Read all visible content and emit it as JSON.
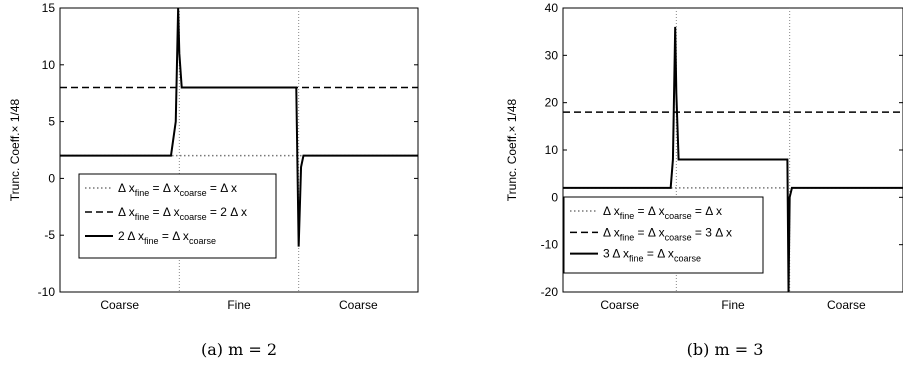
{
  "chart_data": [
    {
      "type": "line",
      "caption": "(a) m = 2",
      "ylabel": "Trunc. Coeff.× 1/48",
      "xlabel": "",
      "categories": [
        "Coarse",
        "Fine",
        "Coarse"
      ],
      "xlim": [
        0,
        3
      ],
      "ylim": [
        -10,
        15
      ],
      "yticks": [
        -10,
        -5,
        0,
        5,
        10,
        15
      ],
      "grid": false,
      "interfaces": [
        1,
        2
      ],
      "legend_position": "bottom-left",
      "series": [
        {
          "legend": [
            "Δ x",
            "fine",
            " = Δ x",
            "coarse",
            " = Δ x"
          ],
          "style": "dotted",
          "x": [
            0,
            1,
            2,
            3
          ],
          "y": [
            2,
            2,
            2,
            2
          ]
        },
        {
          "legend": [
            "Δ x",
            "fine",
            " = Δ x",
            "coarse",
            " = 2 Δ x"
          ],
          "style": "dashed",
          "x": [
            0,
            3
          ],
          "y": [
            8,
            8
          ]
        },
        {
          "legend": [
            "2 Δ x",
            "fine",
            " = Δ x",
            "coarse",
            ""
          ],
          "style": "solid",
          "x": [
            0,
            0.93,
            0.97,
            0.99,
            1.0,
            1.02,
            1.04,
            1.96,
            1.98,
            2.0,
            2.02,
            2.04,
            3
          ],
          "y": [
            2,
            2,
            5,
            15,
            11,
            8,
            8,
            8,
            8,
            -6,
            1,
            2,
            2
          ]
        }
      ]
    },
    {
      "type": "line",
      "caption": "(b) m = 3",
      "ylabel": "Trunc. Coeff.× 1/48",
      "xlabel": "",
      "categories": [
        "Coarse",
        "Fine",
        "Coarse"
      ],
      "xlim": [
        0,
        3
      ],
      "ylim": [
        -20,
        40
      ],
      "yticks": [
        -20,
        -10,
        0,
        10,
        20,
        30,
        40
      ],
      "grid": false,
      "interfaces": [
        1,
        2
      ],
      "legend_position": "bottom-left",
      "series": [
        {
          "legend": [
            "Δ x",
            "fine",
            " = Δ x",
            "coarse",
            " = Δ x"
          ],
          "style": "dotted",
          "x": [
            0,
            1,
            2,
            3
          ],
          "y": [
            2,
            2,
            2,
            2
          ]
        },
        {
          "legend": [
            "Δ x",
            "fine",
            " = Δ x",
            "coarse",
            " = 3 Δ x"
          ],
          "style": "dashed",
          "x": [
            0,
            3
          ],
          "y": [
            18,
            18
          ]
        },
        {
          "legend": [
            "3 Δ x",
            "fine",
            " = Δ x",
            "coarse",
            ""
          ],
          "style": "solid",
          "x": [
            0,
            0.95,
            0.97,
            0.99,
            1.0,
            1.02,
            1.04,
            1.96,
            1.98,
            1.99,
            2.0,
            2.02,
            3
          ],
          "y": [
            2,
            2,
            8,
            36,
            22,
            8,
            8,
            8,
            8,
            -20,
            0,
            2,
            2
          ]
        }
      ]
    }
  ]
}
